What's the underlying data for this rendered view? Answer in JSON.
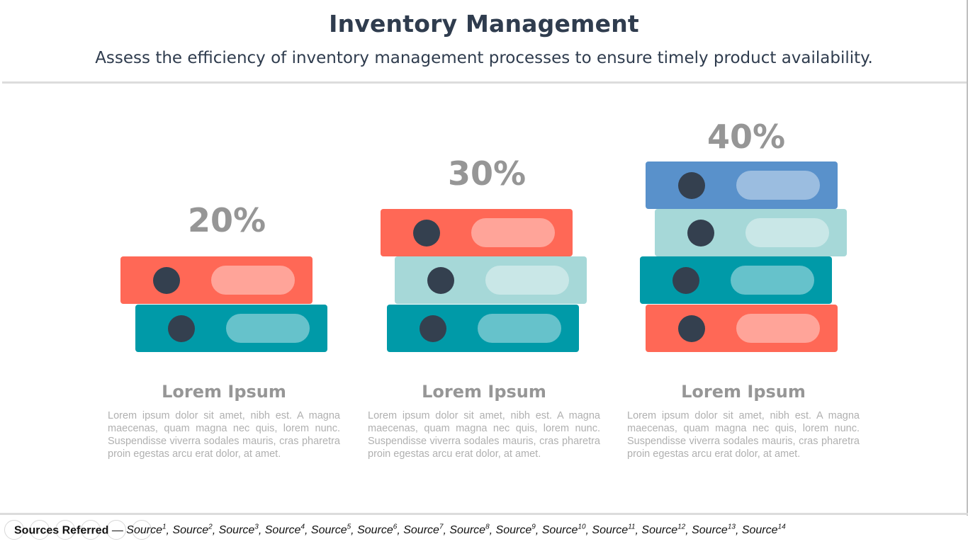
{
  "header": {
    "title": "Inventory Management",
    "subtitle": "Assess the efficiency of inventory management processes to ensure timely product availability."
  },
  "colors": {
    "coral": "#ff6856",
    "teal": "#009aa8",
    "light_teal": "#a6d8d8",
    "blue": "#5991cb",
    "dot": "#34404f",
    "percent_gray": "#969696",
    "title": "#2f3c4e"
  },
  "columns": [
    {
      "percent": "20%",
      "heading": "Lorem Ipsum",
      "body": "Lorem ipsum dolor sit amet, nibh est. A magna maecenas, quam magna nec quis, lorem nunc. Suspendisse viverra sodales mauris, cras pharetra proin egestas arcu erat dolor, at amet.",
      "books": [
        "coral",
        "teal"
      ]
    },
    {
      "percent": "30%",
      "heading": "Lorem Ipsum",
      "body": "Lorem ipsum dolor sit amet, nibh est. A magna maecenas, quam magna nec quis, lorem nunc. Suspendisse viverra sodales mauris, cras pharetra proin egestas arcu erat dolor, at amet.",
      "books": [
        "coral",
        "light_teal",
        "teal"
      ]
    },
    {
      "percent": "40%",
      "heading": "Lorem Ipsum",
      "body": "Lorem ipsum dolor sit amet, nibh est. A magna maecenas, quam magna nec quis, lorem nunc. Suspendisse viverra sodales mauris, cras pharetra proin egestas arcu erat dolor, at amet.",
      "books": [
        "blue",
        "light_teal",
        "teal",
        "coral"
      ]
    }
  ],
  "footer": {
    "label": "Sources Referred",
    "separator": " — ",
    "source_word": "Source",
    "sources": [
      "1",
      "2",
      "3",
      "4",
      "5",
      "6",
      "7",
      "8",
      "9",
      "10",
      "11",
      "12",
      "13",
      "14"
    ]
  }
}
